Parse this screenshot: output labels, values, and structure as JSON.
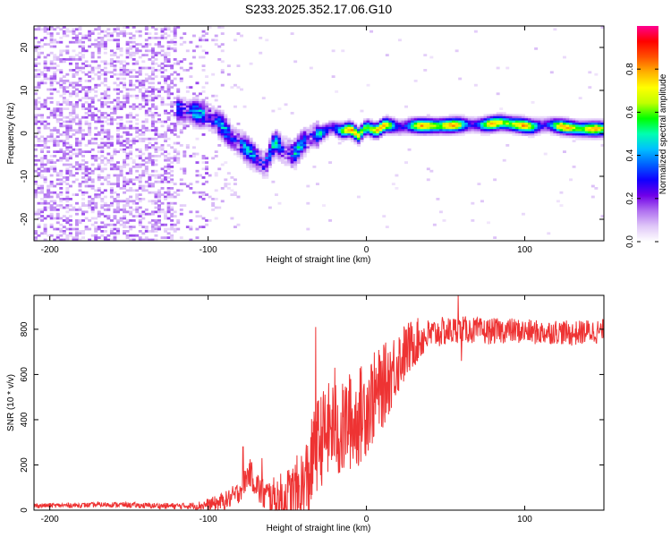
{
  "title": "S233.2025.352.17.06.G10",
  "chart_data": [
    {
      "type": "heatmap",
      "xlabel": "Height of straight line (km)",
      "ylabel": "Frequency (Hz)",
      "xlim": [
        -210,
        150
      ],
      "ylim": [
        -25,
        25
      ],
      "xticks": [
        -200,
        -100,
        0,
        100
      ],
      "yticks": [
        20,
        10,
        0,
        -10,
        -20
      ],
      "ridge": {
        "x": [
          -118,
          -110,
          -100,
          -92,
          -85,
          -78,
          -70,
          -64,
          -58,
          -52,
          -46,
          -40,
          -34,
          -28,
          -22,
          -16,
          -10,
          -5,
          0,
          6,
          12,
          20,
          30,
          45,
          60,
          75,
          85,
          95,
          105,
          115,
          125,
          135,
          150
        ],
        "y": [
          5.5,
          5,
          4,
          2,
          -1,
          -3,
          -5.5,
          -7.5,
          -2,
          -4,
          -5,
          -2,
          -0.5,
          0,
          1.5,
          0.5,
          1,
          -0.5,
          1.5,
          0.5,
          2,
          1.5,
          1.8,
          1.7,
          2,
          2,
          2.5,
          2,
          1.5,
          2,
          1.5,
          1,
          1
        ]
      },
      "colorbar": {
        "label": "Normalized spectral amplitude",
        "ticks": [
          "0.0",
          "0.2",
          "0.4",
          "0.6",
          "0.8"
        ],
        "tick_values": [
          0,
          0.2,
          0.4,
          0.6,
          0.8
        ],
        "range": [
          0,
          1
        ],
        "colors": [
          "#ffffff",
          "#e0c8f8",
          "#b070f0",
          "#7000e8",
          "#1000ff",
          "#0060ff",
          "#00c0ff",
          "#00ffb0",
          "#00ff00",
          "#c0ff00",
          "#ffff00",
          "#ffb000",
          "#ff5000",
          "#ff0000",
          "#ff0090"
        ]
      }
    },
    {
      "type": "line",
      "xlabel": "Height of straight line (km)",
      "ylabel": "SNR (10 * v/v)",
      "xlim": [
        -210,
        150
      ],
      "ylim": [
        0,
        950
      ],
      "xticks": [
        -200,
        -100,
        0,
        100
      ],
      "yticks": [
        0,
        200,
        400,
        600,
        800
      ],
      "color": "#ee3333",
      "envelope": {
        "x": [
          -210,
          -180,
          -160,
          -140,
          -120,
          -105,
          -95,
          -88,
          -82,
          -78,
          -74,
          -70,
          -66,
          -60,
          -55,
          -50,
          -45,
          -40,
          -36,
          -32,
          -28,
          -24,
          -20,
          -16,
          -12,
          -8,
          -4,
          0,
          5,
          10,
          15,
          20,
          25,
          30,
          35,
          40,
          45,
          50,
          60,
          75,
          90,
          100,
          110,
          120,
          130,
          140,
          150
        ],
        "y": [
          20,
          22,
          25,
          20,
          18,
          20,
          30,
          45,
          70,
          110,
          170,
          120,
          70,
          60,
          50,
          50,
          60,
          90,
          160,
          280,
          320,
          350,
          380,
          330,
          400,
          380,
          420,
          460,
          500,
          540,
          600,
          660,
          700,
          740,
          760,
          775,
          785,
          790,
          800,
          790,
          795,
          790,
          785,
          790,
          780,
          790,
          790
        ]
      },
      "noise": {
        "x": [
          -210,
          -150,
          -110,
          -90,
          -60,
          -40,
          -20,
          0,
          20,
          40,
          60,
          100,
          150
        ],
        "amp": [
          10,
          12,
          15,
          40,
          80,
          200,
          220,
          220,
          150,
          70,
          60,
          55,
          55
        ]
      },
      "spikes": [
        {
          "x": -78,
          "y": 280
        },
        {
          "x": -66,
          "y": 230
        },
        {
          "x": -32,
          "y": 810
        },
        {
          "x": -20,
          "y": 630
        },
        {
          "x": -10,
          "y": 580
        },
        {
          "x": 58,
          "y": 950
        },
        {
          "x": 60,
          "y": 660
        }
      ]
    }
  ]
}
